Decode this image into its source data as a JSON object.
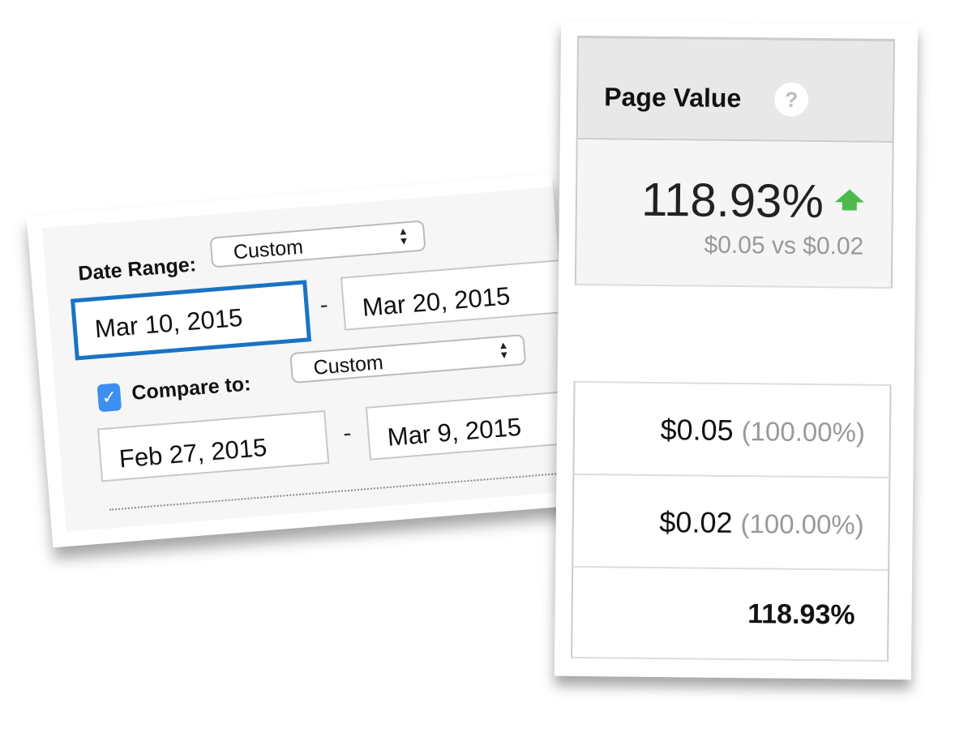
{
  "date_panel": {
    "date_range_label": "Date Range:",
    "date_range_select": "Custom",
    "start_date": "Mar 10, 2015",
    "end_date": "Mar 20, 2015",
    "separator": "-",
    "compare_checked": true,
    "compare_label": "Compare to:",
    "compare_select": "Custom",
    "compare_start_date": "Feb 27, 2015",
    "compare_end_date": "Mar 9, 2015"
  },
  "metric_column": {
    "header": "Page Value",
    "help_icon": "?",
    "change_percent": "118.93%",
    "trend_icon": "arrow-up-icon",
    "trend_color": "#4cbb4c",
    "comparison": "$0.05 vs $0.02",
    "rows": [
      {
        "value": "$0.05",
        "share": "(100.00%)"
      },
      {
        "value": "$0.02",
        "share": "(100.00%)"
      },
      {
        "value": "118.93%",
        "share": ""
      }
    ]
  }
}
